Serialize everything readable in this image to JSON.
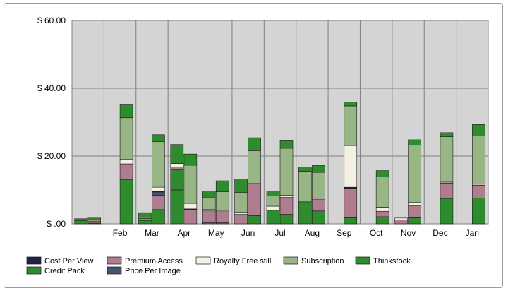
{
  "chart_data": {
    "type": "bar",
    "stacked": true,
    "categories": [
      "",
      "Feb",
      "Mar",
      "Apr",
      "May",
      "Jun",
      "Jul",
      "Aug",
      "Sep",
      "Oct",
      "Nov",
      "Dec",
      "Jan"
    ],
    "ylim": [
      0,
      60
    ],
    "yticks": [
      {
        "value": 0,
        "label": "$ .00"
      },
      {
        "value": 20,
        "label": "$ 20.00"
      },
      {
        "value": 40,
        "label": "$ 40.00"
      },
      {
        "value": 60,
        "label": "$ 60.00"
      }
    ],
    "grid": true,
    "legend_position": "bottom",
    "series_order": [
      "Credit Pack",
      "Premium Access",
      "Price Per Image",
      "Cost Per View",
      "Royalty Free still",
      "Subscription",
      "Thinkstock"
    ],
    "series": [
      {
        "name": "Cost Per View",
        "color": "#1f2346",
        "values": [
          0,
          0,
          0.3,
          0.3,
          0,
          0,
          0,
          0,
          0.3,
          0,
          0,
          0,
          0
        ]
      },
      {
        "name": "Credit Pack",
        "color": "#2e8b2e",
        "values": [
          0.2,
          13,
          4.2,
          0,
          0.3,
          2.4,
          2.8,
          3.8,
          1.8,
          2.1,
          1.8,
          7.5,
          7.6
        ]
      },
      {
        "name": "Premium Access",
        "color": "#b07c8f",
        "values": [
          0.6,
          4.7,
          4.2,
          4.1,
          3.5,
          9.5,
          5.0,
          3.5,
          8.7,
          1.6,
          3.5,
          4.5,
          3.8
        ]
      },
      {
        "name": "Price Per Image",
        "color": "#44546e",
        "values": [
          0,
          0,
          1.0,
          0,
          0,
          0,
          0,
          0,
          0,
          0,
          0,
          0,
          0
        ]
      },
      {
        "name": "Royalty Free still",
        "color": "#f4f1e4",
        "values": [
          0,
          1.3,
          1.1,
          1.6,
          0.3,
          0,
          0.6,
          0.3,
          12.3,
          1.2,
          1.0,
          0.3,
          0.3
        ]
      },
      {
        "name": "Subscription",
        "color": "#98b585",
        "values": [
          0.4,
          12.3,
          13.5,
          11.3,
          5.4,
          9.7,
          13.9,
          7.6,
          11.7,
          9.0,
          16.9,
          13.4,
          14.2
        ]
      },
      {
        "name": "Thinkstock",
        "color": "#2e8b2e",
        "values": [
          0.5,
          3.8,
          2.0,
          3.3,
          3.2,
          3.8,
          2.2,
          2.0,
          1.1,
          1.8,
          1.6,
          1.2,
          3.4
        ]
      }
    ],
    "left_bars": [
      {
        "name": "Thinkstock",
        "values": [
          0,
          0,
          0,
          10.0,
          0.3,
          0,
          0,
          0,
          0,
          0,
          0,
          0,
          0
        ]
      },
      {
        "name": "Credit Pack",
        "values": [
          1.0,
          0,
          1.0,
          6.0,
          0,
          0,
          4.0,
          6.5,
          0,
          0,
          0,
          0,
          0
        ]
      },
      {
        "name": "Premium Access",
        "values": [
          0,
          0,
          0.6,
          0.8,
          3.5,
          2.8,
          0,
          0,
          0,
          0,
          1.2,
          0,
          0
        ]
      },
      {
        "name": "Royalty Free still",
        "values": [
          0,
          0,
          0,
          1.0,
          0.4,
          0.6,
          1.2,
          0,
          0,
          0,
          0.5,
          0,
          0
        ]
      },
      {
        "name": "Subscription",
        "values": [
          0,
          0,
          0.3,
          0,
          3.5,
          5.9,
          3.0,
          9.0,
          0,
          0,
          0,
          0,
          0
        ]
      },
      {
        "name": "Thinkstock",
        "values": [
          0.5,
          0,
          1.4,
          5.6,
          2.0,
          3.9,
          1.5,
          1.3,
          0,
          0,
          0,
          0,
          0
        ]
      }
    ],
    "legend": [
      {
        "name": "Cost Per View",
        "color": "#1f2346"
      },
      {
        "name": "Premium Access",
        "color": "#b07c8f"
      },
      {
        "name": "Royalty Free still",
        "color": "#f4f1e4"
      },
      {
        "name": "Subscription",
        "color": "#98b585"
      },
      {
        "name": "Thinkstock",
        "color": "#2e8b2e"
      },
      {
        "name": "Credit Pack",
        "color": "#2e8b2e"
      },
      {
        "name": "Price Per Image",
        "color": "#44546e"
      }
    ]
  }
}
